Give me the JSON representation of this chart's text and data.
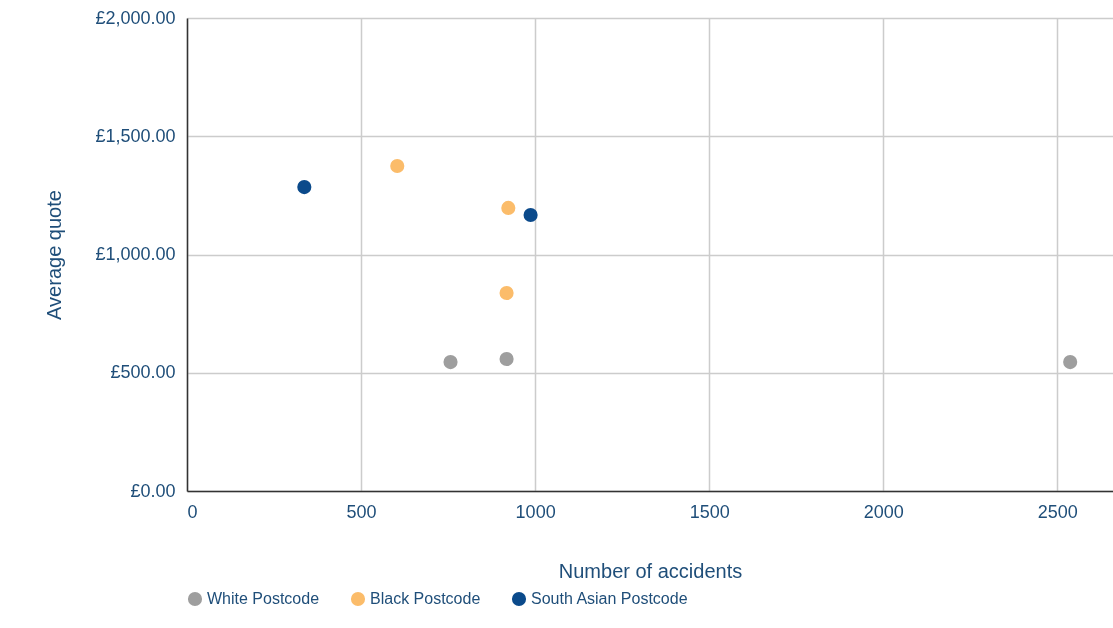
{
  "chart_data": {
    "type": "scatter",
    "xlabel": "Number of accidents",
    "ylabel": "Average quote",
    "series": [
      {
        "name": "White Postcode",
        "color": "#9e9e9e",
        "x": [
          757,
          918,
          2537
        ],
        "values": [
          545,
          558,
          545
        ]
      },
      {
        "name": "Black Postcode",
        "color": "#fbbc6a",
        "x": [
          604,
          923,
          918
        ],
        "values": [
          1374,
          1197,
          837
        ]
      },
      {
        "name": "South Asian Postcode",
        "color": "#0b4a8b",
        "x": [
          337,
          987
        ],
        "values": [
          1285,
          1167
        ]
      }
    ],
    "xlim": [
      0,
      2660
    ],
    "xticks": [
      0,
      500,
      1000,
      1500,
      2000,
      2500
    ],
    "ylim": [
      0,
      2000
    ],
    "yticks": [
      {
        "value": 0,
        "label": "£0.00"
      },
      {
        "value": 500,
        "label": "£500.00"
      },
      {
        "value": 1000,
        "label": "£1,000.00"
      },
      {
        "value": 1500,
        "label": "£1,500.00"
      },
      {
        "value": 2000,
        "label": "£2,000.00"
      }
    ],
    "grid": true,
    "legend": "bottom",
    "marker": "circle"
  }
}
